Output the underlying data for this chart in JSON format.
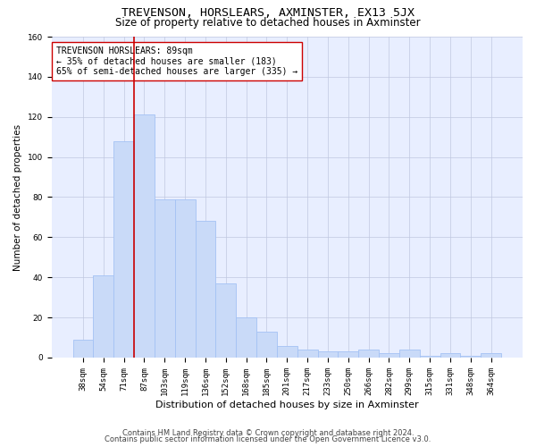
{
  "title": "TREVENSON, HORSLEARS, AXMINSTER, EX13 5JX",
  "subtitle": "Size of property relative to detached houses in Axminster",
  "xlabel": "Distribution of detached houses by size in Axminster",
  "ylabel": "Number of detached properties",
  "categories": [
    "38sqm",
    "54sqm",
    "71sqm",
    "87sqm",
    "103sqm",
    "119sqm",
    "136sqm",
    "152sqm",
    "168sqm",
    "185sqm",
    "201sqm",
    "217sqm",
    "233sqm",
    "250sqm",
    "266sqm",
    "282sqm",
    "299sqm",
    "315sqm",
    "331sqm",
    "348sqm",
    "364sqm"
  ],
  "values": [
    9,
    41,
    108,
    121,
    79,
    79,
    68,
    37,
    20,
    13,
    6,
    4,
    3,
    3,
    4,
    2,
    4,
    1,
    2,
    1,
    2
  ],
  "bar_color": "#c9daf8",
  "bar_edge_color": "#a4c2f4",
  "vline_color": "#cc0000",
  "vline_index": 3,
  "annotation_line1": "TREVENSON HORSLEARS: 89sqm",
  "annotation_line2": "← 35% of detached houses are smaller (183)",
  "annotation_line3": "65% of semi-detached houses are larger (335) →",
  "annotation_box_edge_color": "#cc0000",
  "ylim": [
    0,
    160
  ],
  "yticks": [
    0,
    20,
    40,
    60,
    80,
    100,
    120,
    140,
    160
  ],
  "grid_color": "#c0c8e0",
  "background_color": "#e8eeff",
  "footer_line1": "Contains HM Land Registry data © Crown copyright and database right 2024.",
  "footer_line2": "Contains public sector information licensed under the Open Government Licence v3.0.",
  "title_fontsize": 9.5,
  "subtitle_fontsize": 8.5,
  "xlabel_fontsize": 8,
  "ylabel_fontsize": 7.5,
  "tick_fontsize": 6.5,
  "annotation_fontsize": 7,
  "footer_fontsize": 6
}
